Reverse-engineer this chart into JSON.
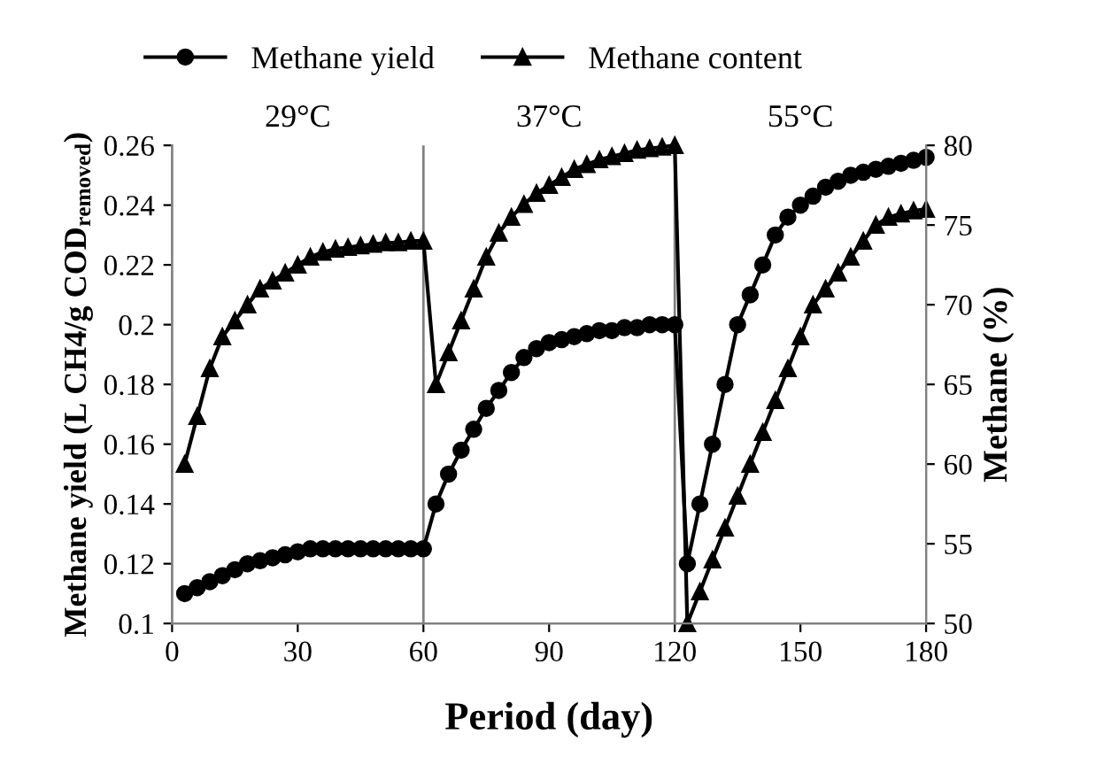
{
  "chart_data": {
    "type": "line",
    "xlabel": "Period (day)",
    "ylabel": "Methane yield (L CH4/g COD$_{removed}$)",
    "y2label": "Methane (%)",
    "x": [
      3,
      6,
      9,
      12,
      15,
      18,
      21,
      24,
      27,
      30,
      33,
      36,
      39,
      42,
      45,
      48,
      51,
      54,
      57,
      60,
      63,
      66,
      69,
      72,
      75,
      78,
      81,
      84,
      87,
      90,
      93,
      96,
      99,
      102,
      105,
      108,
      111,
      114,
      117,
      120,
      123,
      126,
      129,
      132,
      135,
      138,
      141,
      144,
      147,
      150,
      153,
      156,
      159,
      162,
      165,
      168,
      171,
      174,
      177,
      180
    ],
    "series": [
      {
        "name": "Methane yield",
        "color": "#000000",
        "marker": "circle",
        "values": [
          0.11,
          0.112,
          0.114,
          0.116,
          0.118,
          0.12,
          0.121,
          0.122,
          0.123,
          0.124,
          0.125,
          0.125,
          0.125,
          0.125,
          0.125,
          0.125,
          0.125,
          0.125,
          0.125,
          0.125,
          0.14,
          0.15,
          0.158,
          0.165,
          0.172,
          0.178,
          0.184,
          0.189,
          0.192,
          0.194,
          0.195,
          0.196,
          0.197,
          0.198,
          0.198,
          0.199,
          0.199,
          0.2,
          0.2,
          0.2,
          0.12,
          0.14,
          0.16,
          0.18,
          0.2,
          0.21,
          0.22,
          0.23,
          0.236,
          0.24,
          0.243,
          0.246,
          0.248,
          0.25,
          0.251,
          0.252,
          0.253,
          0.254,
          0.255,
          0.256
        ]
      },
      {
        "name": "Methane content",
        "color": "#000000",
        "marker": "triangle",
        "axis": "y2",
        "values": [
          60,
          63,
          66,
          68,
          69,
          70,
          71,
          71.5,
          72,
          72.5,
          73,
          73.3,
          73.5,
          73.6,
          73.7,
          73.8,
          73.9,
          73.9,
          74,
          74,
          65,
          67,
          69,
          71,
          73,
          74.5,
          75.5,
          76.3,
          77,
          77.5,
          78,
          78.5,
          78.8,
          79.1,
          79.3,
          79.5,
          79.7,
          79.8,
          79.9,
          80,
          50,
          52,
          54,
          56,
          58,
          60,
          62,
          64,
          66,
          68,
          70,
          71,
          72,
          73,
          74,
          75,
          75.5,
          75.7,
          75.9,
          76
        ]
      }
    ],
    "xlim": [
      0,
      180
    ],
    "xticks": [
      0,
      30,
      60,
      90,
      120,
      150,
      180
    ],
    "ylim": [
      0.1,
      0.26
    ],
    "yticks": [
      0.1,
      0.12,
      0.14,
      0.16,
      0.18,
      0.2,
      0.22,
      0.24,
      0.26
    ],
    "y2lim": [
      50,
      80
    ],
    "y2ticks": [
      50,
      55,
      60,
      65,
      70,
      75,
      80
    ],
    "ref_lines": [
      {
        "axis": "x",
        "value": 60,
        "color": "#808080"
      },
      {
        "axis": "x",
        "value": 120,
        "color": "#808080"
      }
    ],
    "annotations": [
      "29°C",
      "37°C",
      "55°C"
    ],
    "legend": "top",
    "grid": false
  }
}
